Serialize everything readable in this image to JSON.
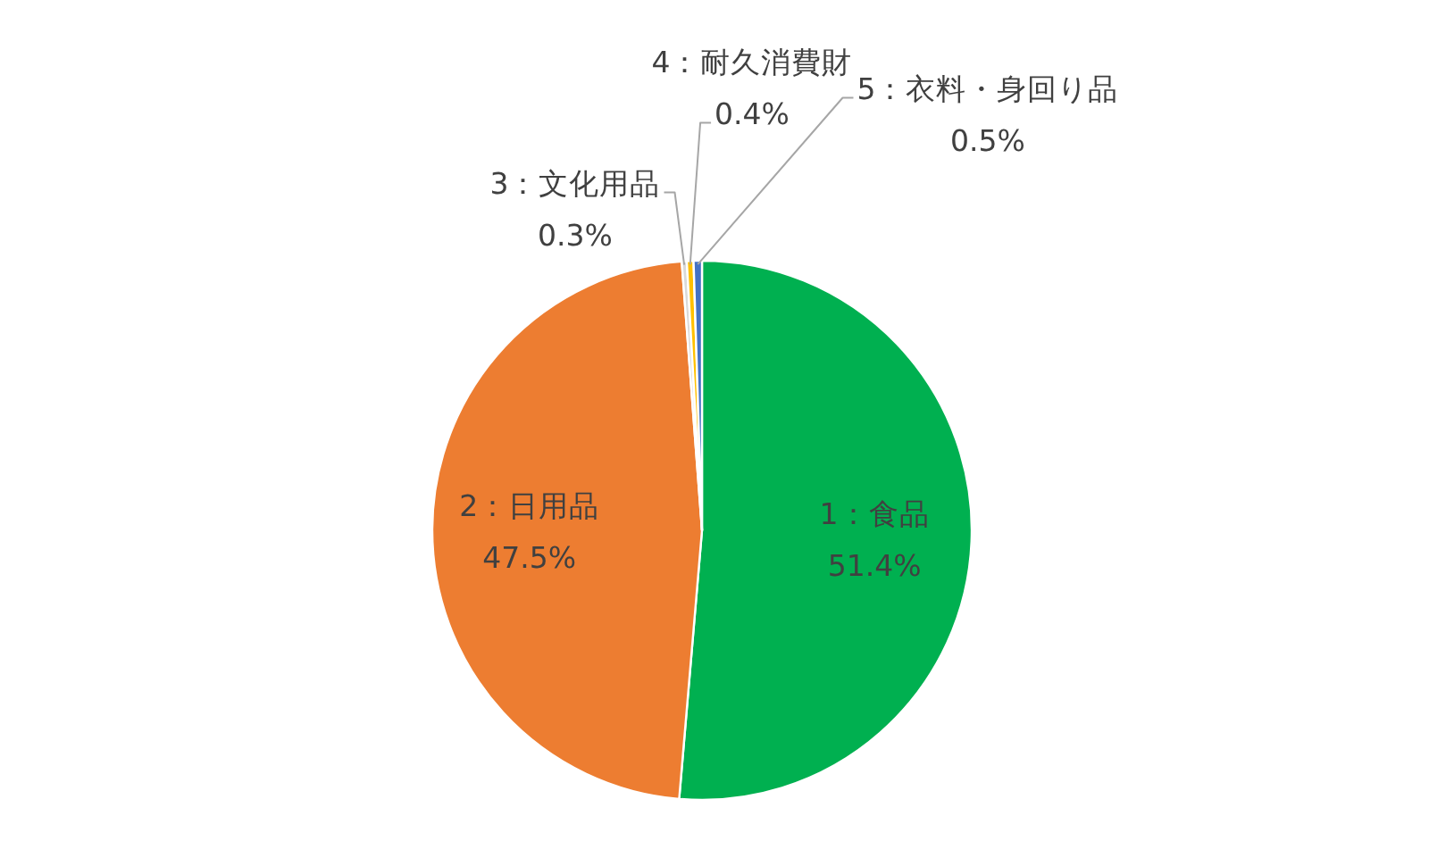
{
  "chart_data": {
    "type": "pie",
    "categories": [
      "1：食品",
      "2：日用品",
      "3：文化用品",
      "4：耐久消費財",
      "5：衣料・身回り品"
    ],
    "values": [
      51.4,
      47.5,
      0.3,
      0.4,
      0.5
    ],
    "value_labels": [
      "51.4%",
      "47.5%",
      "0.3%",
      "0.4%",
      "0.5%"
    ],
    "colors": [
      "#00b050",
      "#ed7d31",
      "#d9d9d9",
      "#ffc000",
      "#4472c4"
    ]
  }
}
